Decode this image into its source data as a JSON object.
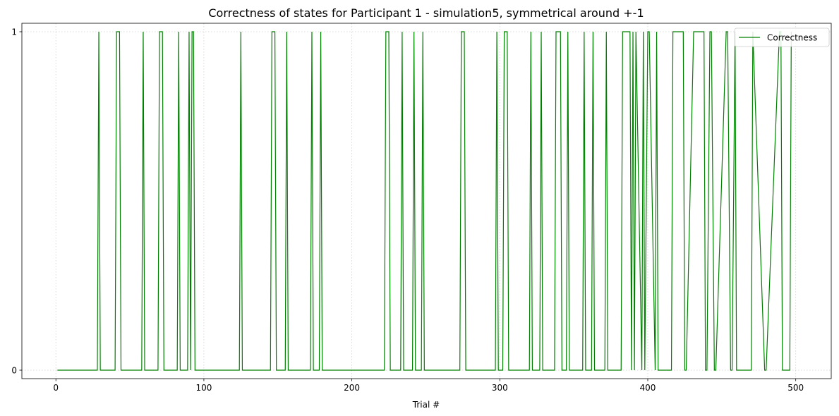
{
  "chart_data": {
    "type": "line",
    "title": "Correctness of states for Participant 1 - simulation5, symmetrical around +-1",
    "xlabel": "Trial #",
    "ylabel": "",
    "xlim": [
      -23,
      524
    ],
    "ylim": [
      -0.025,
      1.025
    ],
    "xticks": [
      0,
      100,
      200,
      300,
      400,
      500
    ],
    "yticks": [
      0,
      1
    ],
    "grid": true,
    "legend_placement": "top-right",
    "line_color": "#008000",
    "series": [
      {
        "name": "Correctness",
        "color": "#008000",
        "x": [
          1,
          28,
          29,
          30,
          40,
          41,
          43,
          44,
          58,
          59,
          60,
          69,
          70,
          72,
          73,
          82,
          83,
          84,
          89,
          90,
          91,
          92,
          93,
          94,
          124,
          125,
          126,
          145,
          146,
          148,
          149,
          155,
          156,
          157,
          172,
          173,
          174,
          178,
          179,
          180,
          222,
          223,
          225,
          226,
          233,
          234,
          235,
          241,
          242,
          243,
          247,
          248,
          249,
          273,
          274,
          276,
          277,
          297,
          298,
          299,
          302,
          303,
          305,
          306,
          320,
          321,
          322,
          327,
          328,
          329,
          337,
          338,
          341,
          342,
          345,
          346,
          347,
          356,
          357,
          358,
          362,
          363,
          364,
          371,
          372,
          373,
          382,
          383,
          388,
          389,
          390,
          391,
          392,
          396,
          397,
          398,
          400,
          401,
          405,
          406,
          407,
          416,
          417,
          424,
          425,
          426,
          431,
          432,
          438,
          439,
          440,
          442,
          443,
          445,
          446,
          453,
          454,
          456,
          457,
          459,
          460,
          470,
          471,
          479,
          480,
          489,
          490,
          491,
          496,
          497
        ],
        "y": [
          0,
          0,
          1,
          0,
          0,
          1,
          1,
          0,
          0,
          1,
          0,
          0,
          1,
          1,
          0,
          0,
          1,
          0,
          0,
          1,
          0,
          1,
          1,
          0,
          0,
          1,
          0,
          0,
          1,
          1,
          0,
          0,
          1,
          0,
          0,
          1,
          0,
          0,
          1,
          0,
          0,
          1,
          1,
          0,
          0,
          1,
          0,
          0,
          1,
          0,
          0,
          1,
          0,
          0,
          1,
          1,
          0,
          0,
          1,
          0,
          0,
          1,
          1,
          0,
          0,
          1,
          0,
          0,
          1,
          0,
          0,
          1,
          1,
          0,
          0,
          1,
          0,
          0,
          1,
          0,
          0,
          1,
          0,
          0,
          1,
          0,
          0,
          1,
          1,
          0,
          1,
          0,
          1,
          0,
          1,
          0,
          1,
          1,
          0,
          1,
          0,
          0,
          1,
          1,
          0,
          0,
          1,
          1,
          1,
          0,
          0,
          1,
          1,
          0,
          0,
          1,
          1,
          0,
          0,
          1,
          0,
          0,
          1,
          0,
          0,
          1,
          1,
          0,
          0,
          1
        ]
      }
    ]
  }
}
